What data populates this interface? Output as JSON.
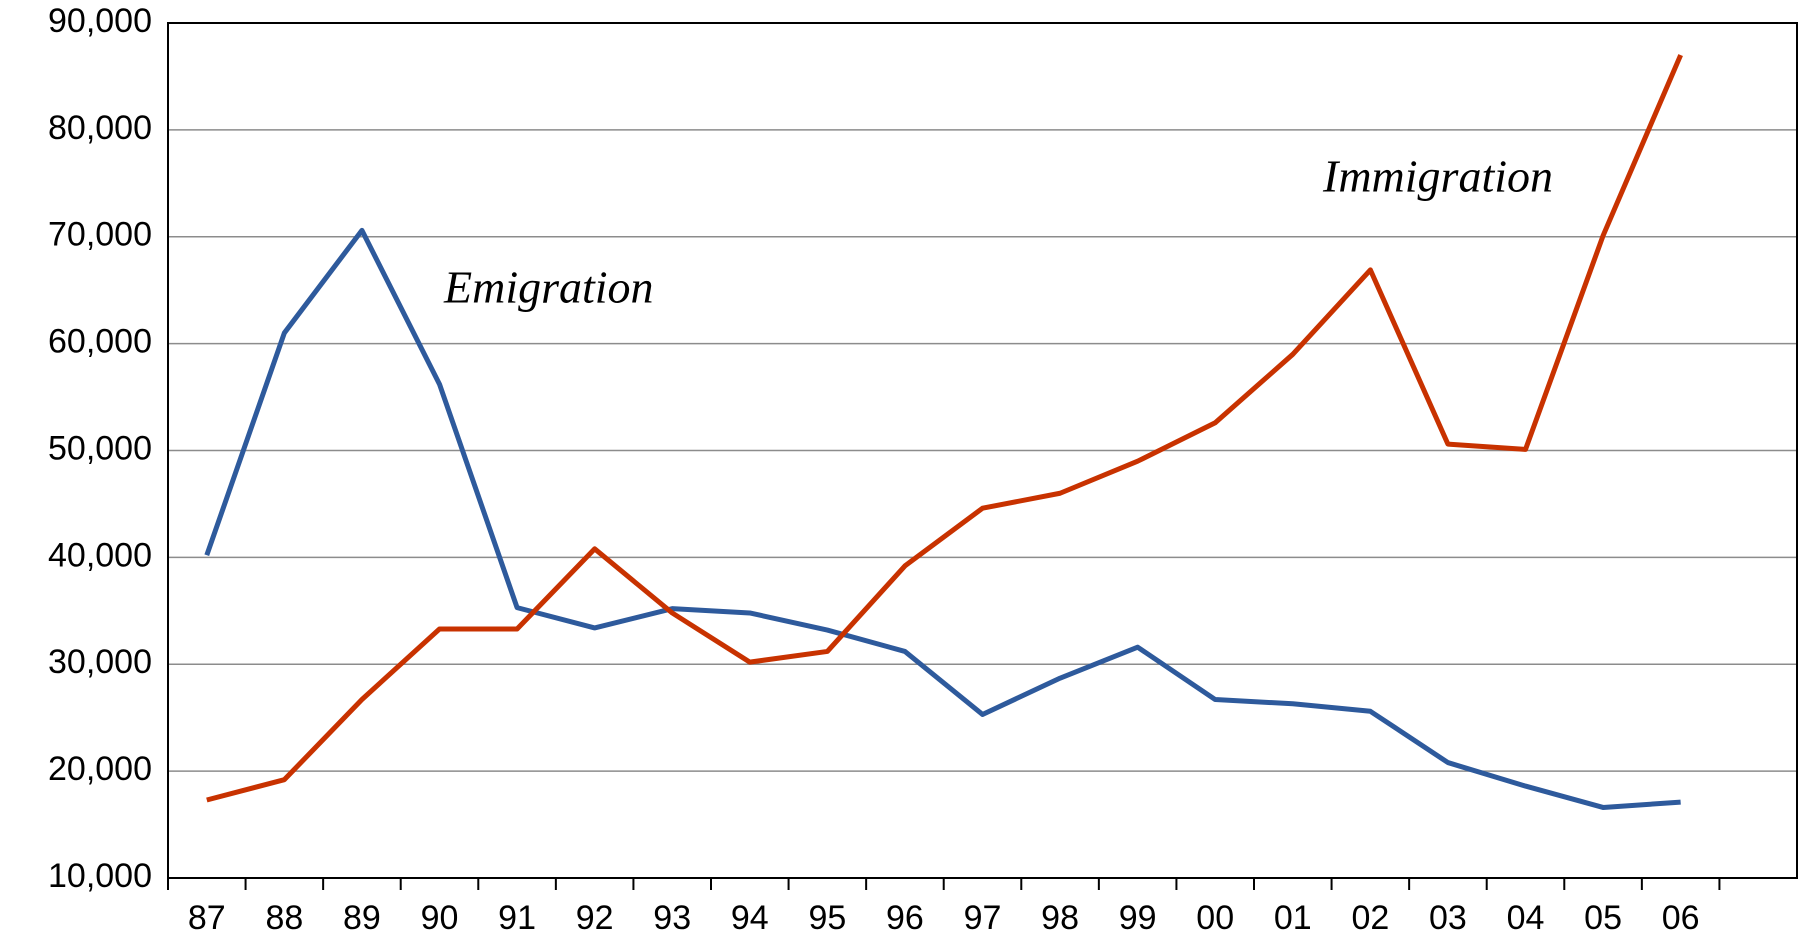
{
  "chart_data": {
    "type": "line",
    "categories": [
      "87",
      "88",
      "89",
      "90",
      "91",
      "92",
      "93",
      "94",
      "95",
      "96",
      "97",
      "98",
      "99",
      "00",
      "01",
      "02",
      "03",
      "04",
      "05",
      "06"
    ],
    "series": [
      {
        "name": "Emigration",
        "color": "#2e5a9c",
        "values": [
          40200,
          61000,
          70600,
          56200,
          35300,
          33400,
          35200,
          34800,
          33200,
          31200,
          25300,
          28700,
          31600,
          26700,
          26300,
          25600,
          20800,
          18600,
          16600,
          17100
        ]
      },
      {
        "name": "Immigration",
        "color": "#c83200",
        "values": [
          17300,
          19200,
          26700,
          33300,
          33300,
          40800,
          34800,
          30200,
          31200,
          39200,
          44600,
          46000,
          49000,
          52600,
          59000,
          66900,
          50600,
          50100,
          70100,
          87000
        ]
      }
    ],
    "ylim": [
      10000,
      90000
    ],
    "yticks": [
      {
        "value": 10000,
        "label": "10,000"
      },
      {
        "value": 20000,
        "label": "20,000"
      },
      {
        "value": 30000,
        "label": "30,000"
      },
      {
        "value": 40000,
        "label": "40,000"
      },
      {
        "value": 50000,
        "label": "50,000"
      },
      {
        "value": 60000,
        "label": "60,000"
      },
      {
        "value": 70000,
        "label": "70,000"
      },
      {
        "value": 80000,
        "label": "80,000"
      },
      {
        "value": 90000,
        "label": "90,000"
      }
    ],
    "grid": true
  }
}
